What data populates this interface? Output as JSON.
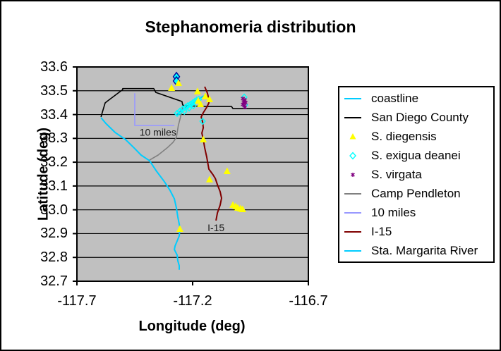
{
  "chart_data": {
    "type": "scatter",
    "title": "Stephanomeria distribution",
    "xlabel": "Longitude (deg)",
    "ylabel": "Latitude (deg)",
    "xlim": [
      -117.7,
      -116.7
    ],
    "ylim": [
      32.7,
      33.6
    ],
    "x_tick_labels": [
      "-117.7",
      "-117.2",
      "-116.7"
    ],
    "x_tick_values": [
      -117.7,
      -117.2,
      -116.7
    ],
    "y_tick_labels": [
      "33.6",
      "33.5",
      "33.4",
      "33.3",
      "33.2",
      "33.1",
      "33.0",
      "32.9",
      "32.8",
      "32.7"
    ],
    "y_tick_values": [
      33.6,
      33.5,
      33.4,
      33.3,
      33.2,
      33.1,
      33.0,
      32.9,
      32.8,
      32.7
    ],
    "grid": "horizontal-black",
    "plot_bg": "#C0C0C0",
    "legend_position": "right",
    "line_series": [
      {
        "name": "10 miles",
        "color": "#9999FF",
        "width": 1.6,
        "points": [
          [
            -117.45,
            33.49
          ],
          [
            -117.45,
            33.354
          ],
          [
            -117.279,
            33.354
          ]
        ]
      },
      {
        "name": "Camp Pendleton",
        "color": "#808080",
        "width": 1.6,
        "points": [
          [
            -117.243,
            33.431
          ],
          [
            -117.253,
            33.387
          ],
          [
            -117.262,
            33.354
          ],
          [
            -117.27,
            33.304
          ],
          [
            -117.285,
            33.283
          ],
          [
            -117.31,
            33.26
          ],
          [
            -117.349,
            33.23
          ],
          [
            -117.386,
            33.209
          ]
        ]
      },
      {
        "name": "San Diego County",
        "color": "#000000",
        "width": 1.6,
        "points": [
          [
            -117.596,
            33.39
          ],
          [
            -117.578,
            33.449
          ],
          [
            -117.569,
            33.456
          ],
          [
            -117.502,
            33.505
          ],
          [
            -117.502,
            33.509
          ],
          [
            -117.368,
            33.509
          ],
          [
            -117.359,
            33.493
          ],
          [
            -117.246,
            33.455
          ],
          [
            -117.243,
            33.44
          ],
          [
            -117.234,
            33.437
          ],
          [
            -117.139,
            33.434
          ],
          [
            -117.032,
            33.434
          ],
          [
            -117.026,
            33.425
          ],
          [
            -116.7,
            33.425
          ]
        ]
      },
      {
        "name": "coastline",
        "color": "#00CCFF",
        "width": 2,
        "points": [
          [
            -117.596,
            33.387
          ],
          [
            -117.575,
            33.363
          ],
          [
            -117.535,
            33.325
          ],
          [
            -117.49,
            33.295
          ],
          [
            -117.453,
            33.26
          ],
          [
            -117.423,
            33.23
          ],
          [
            -117.386,
            33.206
          ],
          [
            -117.356,
            33.162
          ],
          [
            -117.322,
            33.118
          ],
          [
            -117.298,
            33.082
          ],
          [
            -117.279,
            33.046
          ],
          [
            -117.27,
            33.008
          ],
          [
            -117.264,
            32.97
          ],
          [
            -117.255,
            32.925
          ],
          [
            -117.258,
            32.89
          ],
          [
            -117.276,
            32.848
          ],
          [
            -117.279,
            32.833
          ],
          [
            -117.267,
            32.81
          ],
          [
            -117.264,
            32.786
          ],
          [
            -117.258,
            32.765
          ],
          [
            -117.258,
            32.748
          ]
        ]
      },
      {
        "name": "Sta. Margarita River",
        "color": "#00CCFF",
        "width": 2,
        "points": [
          [
            -117.27,
            33.399
          ],
          [
            -117.249,
            33.417
          ],
          [
            -117.227,
            33.431
          ],
          [
            -117.206,
            33.443
          ],
          [
            -117.185,
            33.458
          ],
          [
            -117.166,
            33.47
          ],
          [
            -117.152,
            33.479
          ]
        ]
      },
      {
        "name": "I-15",
        "color": "#800000",
        "width": 2,
        "points": [
          [
            -117.148,
            33.517
          ],
          [
            -117.136,
            33.49
          ],
          [
            -117.13,
            33.464
          ],
          [
            -117.13,
            33.449
          ],
          [
            -117.139,
            33.431
          ],
          [
            -117.154,
            33.408
          ],
          [
            -117.163,
            33.39
          ],
          [
            -117.157,
            33.369
          ],
          [
            -117.154,
            33.345
          ],
          [
            -117.16,
            33.322
          ],
          [
            -117.154,
            33.295
          ],
          [
            -117.148,
            33.26
          ],
          [
            -117.139,
            33.221
          ],
          [
            -117.13,
            33.171
          ],
          [
            -117.112,
            33.147
          ],
          [
            -117.102,
            33.132
          ],
          [
            -117.093,
            33.106
          ],
          [
            -117.081,
            33.076
          ],
          [
            -117.075,
            33.049
          ],
          [
            -117.081,
            33.02
          ],
          [
            -117.093,
            32.987
          ],
          [
            -117.099,
            32.955
          ]
        ]
      }
    ],
    "marker_series": [
      {
        "name": "S. exigua deanei",
        "marker": "diamond",
        "color": "#00FFFF",
        "points": [
          [
            -117.267,
            33.405
          ],
          [
            -117.255,
            33.414
          ],
          [
            -117.243,
            33.423
          ],
          [
            -117.236,
            33.414
          ],
          [
            -117.23,
            33.431
          ],
          [
            -117.221,
            33.437
          ],
          [
            -117.215,
            33.428
          ],
          [
            -117.209,
            33.443
          ],
          [
            -117.2,
            33.449
          ],
          [
            -117.197,
            33.437
          ],
          [
            -117.191,
            33.455
          ],
          [
            -117.182,
            33.461
          ],
          [
            -117.173,
            33.464
          ],
          [
            -117.157,
            33.372
          ],
          [
            -116.977,
            33.473
          ],
          [
            -116.974,
            33.44
          ]
        ],
        "big_points": [
          [
            -117.27,
            33.559
          ],
          [
            -117.27,
            33.541
          ]
        ]
      },
      {
        "name": "S. diegensis",
        "marker": "triangle",
        "color": "#FFFF00",
        "points": [
          [
            -117.291,
            33.511
          ],
          [
            -117.261,
            33.532
          ],
          [
            -117.179,
            33.497
          ],
          [
            -117.145,
            33.476
          ],
          [
            -117.127,
            33.464
          ],
          [
            -117.176,
            33.458
          ],
          [
            -117.166,
            33.443
          ],
          [
            -117.154,
            33.295
          ],
          [
            -117.051,
            33.162
          ],
          [
            -117.127,
            33.127
          ],
          [
            -117.026,
            33.02
          ],
          [
            -117.014,
            33.014
          ],
          [
            -117.005,
            33.008
          ],
          [
            -116.993,
            33.005
          ],
          [
            -116.984,
            33.002
          ],
          [
            -117.255,
            32.919
          ]
        ]
      },
      {
        "name": "S. virgata",
        "marker": "asterisk",
        "color": "#800080",
        "points": [
          [
            -116.983,
            33.467
          ],
          [
            -116.974,
            33.461
          ],
          [
            -116.98,
            33.452
          ],
          [
            -116.971,
            33.449
          ],
          [
            -116.983,
            33.443
          ],
          [
            -116.977,
            33.437
          ],
          [
            -116.974,
            33.431
          ]
        ]
      }
    ],
    "annotations": [
      {
        "text": "10 miles",
        "lon": -117.35,
        "lat": 33.326
      },
      {
        "text": "I-15",
        "lon": -117.099,
        "lat": 32.925
      }
    ],
    "legend_entries": [
      {
        "label": "coastline",
        "type": "line",
        "color": "#00CCFF"
      },
      {
        "label": "San Diego County",
        "type": "line",
        "color": "#000000"
      },
      {
        "label": "S. diegensis",
        "type": "triangle",
        "color": "#FFFF00"
      },
      {
        "label": "S. exigua deanei",
        "type": "diamond",
        "color": "#00FFFF"
      },
      {
        "label": "S. virgata",
        "type": "asterisk",
        "color": "#800080"
      },
      {
        "label": "Camp Pendleton",
        "type": "line",
        "color": "#808080"
      },
      {
        "label": "10 miles",
        "type": "line",
        "color": "#9999FF"
      },
      {
        "label": "I-15",
        "type": "line",
        "color": "#800000"
      },
      {
        "label": "Sta. Margarita River",
        "type": "line",
        "color": "#00CCFF"
      }
    ]
  }
}
